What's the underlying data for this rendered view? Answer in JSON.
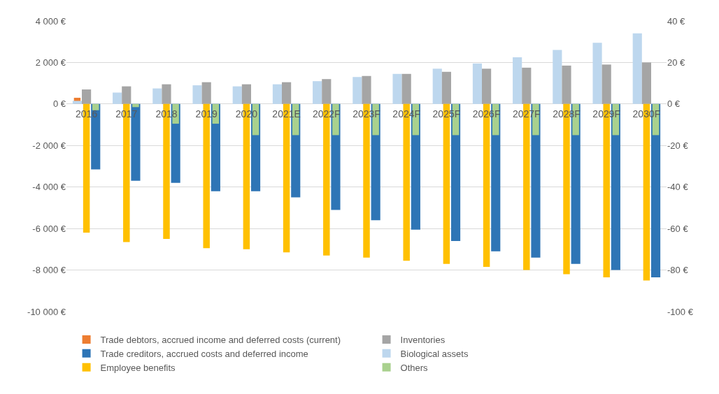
{
  "chart_data": {
    "type": "bar",
    "categories": [
      "2016",
      "2017",
      "2018",
      "2019",
      "2020",
      "2021E",
      "2022F",
      "2023F",
      "2024F",
      "2025F",
      "2026F",
      "2027F",
      "2028F",
      "2029F",
      "2030F"
    ],
    "series": [
      {
        "name": "Trade debtors, accrued income and deferred costs (current)",
        "color": "#ed7d31",
        "values": [
          300,
          0,
          0,
          0,
          0,
          0,
          0,
          0,
          0,
          0,
          0,
          0,
          0,
          0,
          0
        ]
      },
      {
        "name": "Biological assets",
        "color": "#bdd7ee",
        "values": [
          150,
          550,
          750,
          900,
          850,
          950,
          1100,
          1300,
          1450,
          1700,
          1950,
          2250,
          2600,
          2950,
          3400
        ]
      },
      {
        "name": "Inventories",
        "color": "#a5a5a5",
        "values": [
          700,
          850,
          950,
          1050,
          950,
          1050,
          1200,
          1350,
          1450,
          1550,
          1700,
          1750,
          1850,
          1900,
          2000
        ]
      },
      {
        "name": "Trade creditors, accrued costs and deferred income",
        "color": "#2e75b6",
        "values": [
          -3150,
          -3700,
          -3800,
          -4200,
          -4200,
          -4500,
          -5100,
          -5600,
          -6050,
          -6600,
          -7100,
          -7400,
          -7700,
          -8000,
          -8350
        ]
      },
      {
        "name": "Employee benefits",
        "color": "#ffc000",
        "axis": "y2",
        "values": [
          -62,
          -66.5,
          -65,
          -69.5,
          -70,
          -71.5,
          -73,
          -74,
          -75.5,
          -77,
          -78.5,
          -80,
          -82,
          -83.5,
          -85
        ]
      },
      {
        "name": "Others",
        "color": "#a9d18e",
        "axis": "y2",
        "values": [
          -3,
          -1.5,
          -9.5,
          -9.5,
          -15,
          -15,
          -15,
          -15,
          -15,
          -15,
          -15,
          -15,
          -15,
          -15,
          -15
        ]
      }
    ],
    "ylim": [
      -10000,
      4000
    ],
    "yticks": [
      {
        "value": -10000,
        "label": "-10 000 €"
      },
      {
        "value": -8000,
        "label": "-8 000 €"
      },
      {
        "value": -6000,
        "label": "-6 000 €"
      },
      {
        "value": -4000,
        "label": "-4 000 €"
      },
      {
        "value": -2000,
        "label": "-2 000 €"
      },
      {
        "value": 0,
        "label": "0 €"
      },
      {
        "value": 2000,
        "label": "2 000 €"
      },
      {
        "value": 4000,
        "label": "4 000 €"
      }
    ],
    "y2lim": [
      -100,
      40
    ],
    "y2ticks": [
      {
        "value": -100,
        "label": "-100 €"
      },
      {
        "value": -80,
        "label": "-80 €"
      },
      {
        "value": -60,
        "label": "-60 €"
      },
      {
        "value": -40,
        "label": "-40 €"
      },
      {
        "value": -20,
        "label": "-20 €"
      },
      {
        "value": 0,
        "label": "0 €"
      },
      {
        "value": 20,
        "label": "20 €"
      },
      {
        "value": 40,
        "label": "40 €"
      }
    ],
    "grid": "y",
    "legend": "bottom"
  }
}
